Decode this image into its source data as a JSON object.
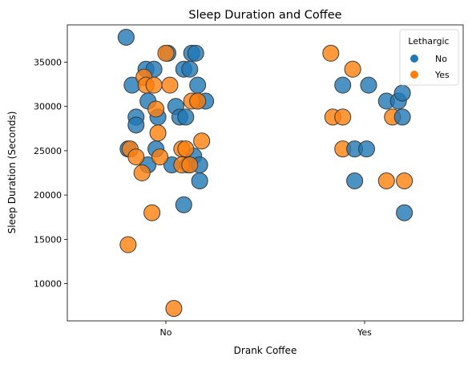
{
  "chart_data": {
    "type": "scatter",
    "title": "Sleep Duration and Coffee",
    "xlabel": "Drank Coffee",
    "ylabel": "Sleep Duration (Seconds)",
    "categories": [
      "No",
      "Yes"
    ],
    "ylim": [
      5800,
      39200
    ],
    "yticks": [
      10000,
      15000,
      20000,
      25000,
      30000,
      35000
    ],
    "grid": false,
    "legend": {
      "title": "Lethargic",
      "placement": "top-right",
      "entries": [
        "No",
        "Yes"
      ]
    },
    "colors": {
      "No": "#1f77b4",
      "Yes": "#ff7f0e"
    },
    "series": [
      {
        "name": "No",
        "points": [
          {
            "x": "No",
            "jitter": -0.2,
            "y": 37800
          },
          {
            "x": "No",
            "jitter": 0.01,
            "y": 36000
          },
          {
            "x": "No",
            "jitter": 0.13,
            "y": 36000
          },
          {
            "x": "No",
            "jitter": 0.15,
            "y": 36000
          },
          {
            "x": "No",
            "jitter": -0.1,
            "y": 34200
          },
          {
            "x": "No",
            "jitter": -0.06,
            "y": 34200
          },
          {
            "x": "No",
            "jitter": 0.09,
            "y": 34200
          },
          {
            "x": "No",
            "jitter": 0.12,
            "y": 34200
          },
          {
            "x": "No",
            "jitter": -0.17,
            "y": 32400
          },
          {
            "x": "No",
            "jitter": 0.16,
            "y": 32400
          },
          {
            "x": "No",
            "jitter": -0.09,
            "y": 30600
          },
          {
            "x": "No",
            "jitter": 0.16,
            "y": 30600
          },
          {
            "x": "No",
            "jitter": 0.2,
            "y": 30600
          },
          {
            "x": "No",
            "jitter": 0.05,
            "y": 30000
          },
          {
            "x": "No",
            "jitter": -0.15,
            "y": 28800
          },
          {
            "x": "No",
            "jitter": -0.04,
            "y": 28800
          },
          {
            "x": "No",
            "jitter": 0.07,
            "y": 28800
          },
          {
            "x": "No",
            "jitter": 0.1,
            "y": 28800
          },
          {
            "x": "No",
            "jitter": -0.15,
            "y": 27900
          },
          {
            "x": "No",
            "jitter": -0.19,
            "y": 25200
          },
          {
            "x": "No",
            "jitter": -0.05,
            "y": 25200
          },
          {
            "x": "No",
            "jitter": 0.14,
            "y": 24400
          },
          {
            "x": "No",
            "jitter": -0.09,
            "y": 23400
          },
          {
            "x": "No",
            "jitter": 0.03,
            "y": 23400
          },
          {
            "x": "No",
            "jitter": 0.11,
            "y": 23400
          },
          {
            "x": "No",
            "jitter": 0.17,
            "y": 23400
          },
          {
            "x": "No",
            "jitter": 0.17,
            "y": 21600
          },
          {
            "x": "No",
            "jitter": 0.09,
            "y": 18900
          }
        ]
      },
      {
        "name": "Yes",
        "points": [
          {
            "x": "No",
            "jitter": 0.0,
            "y": 36000
          },
          {
            "x": "No",
            "jitter": -0.11,
            "y": 33300
          },
          {
            "x": "No",
            "jitter": -0.1,
            "y": 32400
          },
          {
            "x": "No",
            "jitter": -0.06,
            "y": 32400
          },
          {
            "x": "No",
            "jitter": 0.02,
            "y": 32400
          },
          {
            "x": "No",
            "jitter": -0.05,
            "y": 29700
          },
          {
            "x": "No",
            "jitter": 0.13,
            "y": 30600
          },
          {
            "x": "No",
            "jitter": 0.16,
            "y": 30600
          },
          {
            "x": "No",
            "jitter": -0.04,
            "y": 27000
          },
          {
            "x": "No",
            "jitter": 0.18,
            "y": 26100
          },
          {
            "x": "No",
            "jitter": -0.18,
            "y": 25200
          },
          {
            "x": "No",
            "jitter": 0.08,
            "y": 25200
          },
          {
            "x": "No",
            "jitter": 0.1,
            "y": 25200
          },
          {
            "x": "No",
            "jitter": -0.15,
            "y": 24300
          },
          {
            "x": "No",
            "jitter": -0.03,
            "y": 24300
          },
          {
            "x": "No",
            "jitter": 0.08,
            "y": 23400
          },
          {
            "x": "No",
            "jitter": 0.12,
            "y": 23400
          },
          {
            "x": "No",
            "jitter": -0.12,
            "y": 22500
          },
          {
            "x": "No",
            "jitter": -0.07,
            "y": 18000
          },
          {
            "x": "No",
            "jitter": -0.19,
            "y": 14400
          },
          {
            "x": "No",
            "jitter": 0.04,
            "y": 7200
          },
          {
            "x": "Yes",
            "jitter": -0.17,
            "y": 36000
          },
          {
            "x": "Yes",
            "jitter": -0.06,
            "y": 34200
          },
          {
            "x": "Yes",
            "jitter": -0.16,
            "y": 28800
          },
          {
            "x": "Yes",
            "jitter": -0.11,
            "y": 28800
          },
          {
            "x": "Yes",
            "jitter": -0.11,
            "y": 25200
          },
          {
            "x": "Yes",
            "jitter": 0.14,
            "y": 28800
          },
          {
            "x": "Yes",
            "jitter": 0.11,
            "y": 21600
          },
          {
            "x": "Yes",
            "jitter": 0.2,
            "y": 21600
          }
        ]
      },
      {
        "name": "No",
        "points": [
          {
            "x": "Yes",
            "jitter": -0.11,
            "y": 32400
          },
          {
            "x": "Yes",
            "jitter": 0.02,
            "y": 32400
          },
          {
            "x": "Yes",
            "jitter": 0.11,
            "y": 30600
          },
          {
            "x": "Yes",
            "jitter": 0.17,
            "y": 30600
          },
          {
            "x": "Yes",
            "jitter": 0.19,
            "y": 31500
          },
          {
            "x": "Yes",
            "jitter": 0.19,
            "y": 28800
          },
          {
            "x": "Yes",
            "jitter": -0.05,
            "y": 25200
          },
          {
            "x": "Yes",
            "jitter": 0.01,
            "y": 25200
          },
          {
            "x": "Yes",
            "jitter": -0.05,
            "y": 21600
          },
          {
            "x": "Yes",
            "jitter": 0.2,
            "y": 18000
          }
        ]
      }
    ]
  }
}
